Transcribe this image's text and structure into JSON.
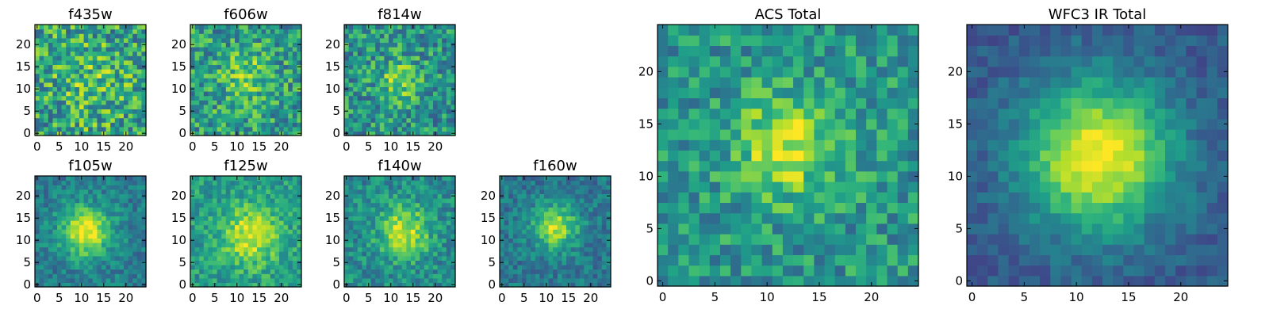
{
  "figure": {
    "description_colormap": "viridis",
    "colormap_stops": [
      "#440154",
      "#482878",
      "#3e4989",
      "#31688e",
      "#26828e",
      "#1f9e89",
      "#35b779",
      "#6ece58",
      "#b5de2b",
      "#fde725"
    ]
  },
  "chart_data": [
    {
      "type": "heatmap",
      "title": "f435w",
      "grid_size": 25,
      "xticks": [
        "0",
        "5",
        "10",
        "15",
        "20"
      ],
      "yticks": [
        "0",
        "5",
        "10",
        "15",
        "20"
      ],
      "xlim": [
        0,
        25
      ],
      "ylim": [
        0,
        25
      ],
      "peak_center": [
        12,
        12
      ],
      "peak_width": 6.0,
      "peak_amp": 0.12,
      "base": 0.58,
      "noise": 0.3,
      "seed": 435
    },
    {
      "type": "heatmap",
      "title": "f606w",
      "grid_size": 25,
      "xticks": [
        "0",
        "5",
        "10",
        "15",
        "20"
      ],
      "yticks": [
        "0",
        "5",
        "10",
        "15",
        "20"
      ],
      "xlim": [
        0,
        25
      ],
      "ylim": [
        0,
        25
      ],
      "peak_center": [
        12,
        13
      ],
      "peak_width": 3.5,
      "peak_amp": 0.25,
      "base": 0.56,
      "noise": 0.26,
      "seed": 606
    },
    {
      "type": "heatmap",
      "title": "f814w",
      "grid_size": 25,
      "xticks": [
        "0",
        "5",
        "10",
        "15",
        "20"
      ],
      "yticks": [
        "0",
        "5",
        "10",
        "15",
        "20"
      ],
      "xlim": [
        0,
        25
      ],
      "ylim": [
        0,
        25
      ],
      "peak_center": [
        12,
        12
      ],
      "peak_width": 3.0,
      "peak_amp": 0.32,
      "base": 0.52,
      "noise": 0.24,
      "seed": 814
    },
    {
      "type": "heatmap",
      "title": "f105w",
      "grid_size": 25,
      "xticks": [
        "0",
        "5",
        "10",
        "15",
        "20"
      ],
      "yticks": [
        "0",
        "5",
        "10",
        "15",
        "20"
      ],
      "xlim": [
        0,
        25
      ],
      "ylim": [
        0,
        25
      ],
      "peak_center": [
        11,
        12
      ],
      "peak_width": 4.0,
      "peak_amp": 0.55,
      "base": 0.42,
      "noise": 0.14,
      "seed": 105
    },
    {
      "type": "heatmap",
      "title": "f125w",
      "grid_size": 25,
      "xticks": [
        "0",
        "5",
        "10",
        "15",
        "20"
      ],
      "yticks": [
        "0",
        "5",
        "10",
        "15",
        "20"
      ],
      "xlim": [
        0,
        25
      ],
      "ylim": [
        0,
        25
      ],
      "peak_center": [
        13,
        11
      ],
      "peak_width": 4.5,
      "peak_amp": 0.4,
      "base": 0.55,
      "noise": 0.16,
      "seed": 125
    },
    {
      "type": "heatmap",
      "title": "f140w",
      "grid_size": 25,
      "xticks": [
        "0",
        "5",
        "10",
        "15",
        "20"
      ],
      "yticks": [
        "0",
        "5",
        "10",
        "15",
        "20"
      ],
      "xlim": [
        0,
        25
      ],
      "ylim": [
        0,
        25
      ],
      "peak_center": [
        13,
        12
      ],
      "peak_width": 4.0,
      "peak_amp": 0.45,
      "base": 0.48,
      "noise": 0.17,
      "seed": 140
    },
    {
      "type": "heatmap",
      "title": "f160w",
      "grid_size": 25,
      "xticks": [
        "0",
        "5",
        "10",
        "15",
        "20"
      ],
      "yticks": [
        "0",
        "5",
        "10",
        "15",
        "20"
      ],
      "xlim": [
        0,
        25
      ],
      "ylim": [
        0,
        25
      ],
      "peak_center": [
        12,
        13
      ],
      "peak_width": 3.5,
      "peak_amp": 0.5,
      "base": 0.4,
      "noise": 0.14,
      "seed": 160
    },
    {
      "type": "heatmap",
      "title": "ACS Total",
      "grid_size": 25,
      "xticks": [
        "0",
        "5",
        "10",
        "15",
        "20"
      ],
      "yticks": [
        "0",
        "5",
        "10",
        "15",
        "20"
      ],
      "xlim": [
        0,
        25
      ],
      "ylim": [
        0,
        25
      ],
      "peak_center": [
        12,
        13
      ],
      "peak_width": 3.5,
      "peak_amp": 0.4,
      "base": 0.52,
      "noise": 0.2,
      "seed": 2001
    },
    {
      "type": "heatmap",
      "title": "WFC3 IR Total",
      "grid_size": 25,
      "xticks": [
        "0",
        "5",
        "10",
        "15",
        "20"
      ],
      "yticks": [
        "0",
        "5",
        "10",
        "15",
        "20"
      ],
      "xlim": [
        0,
        25
      ],
      "ylim": [
        0,
        25
      ],
      "peak_center": [
        12,
        12
      ],
      "peak_width": 5.0,
      "peak_amp": 0.72,
      "base": 0.28,
      "noise": 0.09,
      "seed": 3003
    }
  ]
}
